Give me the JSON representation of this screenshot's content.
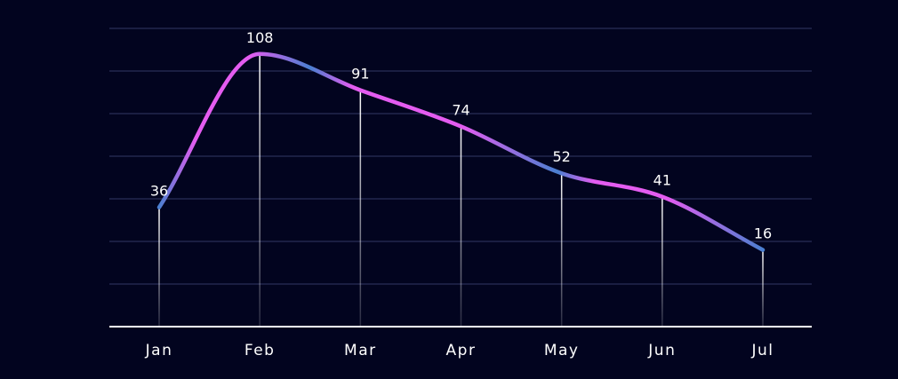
{
  "chart_data": {
    "type": "line",
    "title": "",
    "xlabel": "",
    "ylabel": "",
    "categories": [
      "Jan",
      "Feb",
      "Mar",
      "Apr",
      "May",
      "Jun",
      "Jul"
    ],
    "series": [
      {
        "values": [
          36,
          108,
          91,
          74,
          52,
          41,
          16
        ]
      }
    ],
    "ylim": [
      -20,
      120
    ],
    "y_gridlines": [
      0,
      20,
      40,
      60,
      80,
      100,
      120
    ],
    "grid": "horizontal",
    "smooth": true,
    "data_labels": true,
    "legend": "none"
  },
  "colors": {
    "background": "#02041f",
    "gridline": "#2a2f58",
    "axis": "#ffffff",
    "text": "#ffffff",
    "line_gradient_pink": "#e45cf0",
    "line_gradient_blue": "#4a7fd0"
  }
}
